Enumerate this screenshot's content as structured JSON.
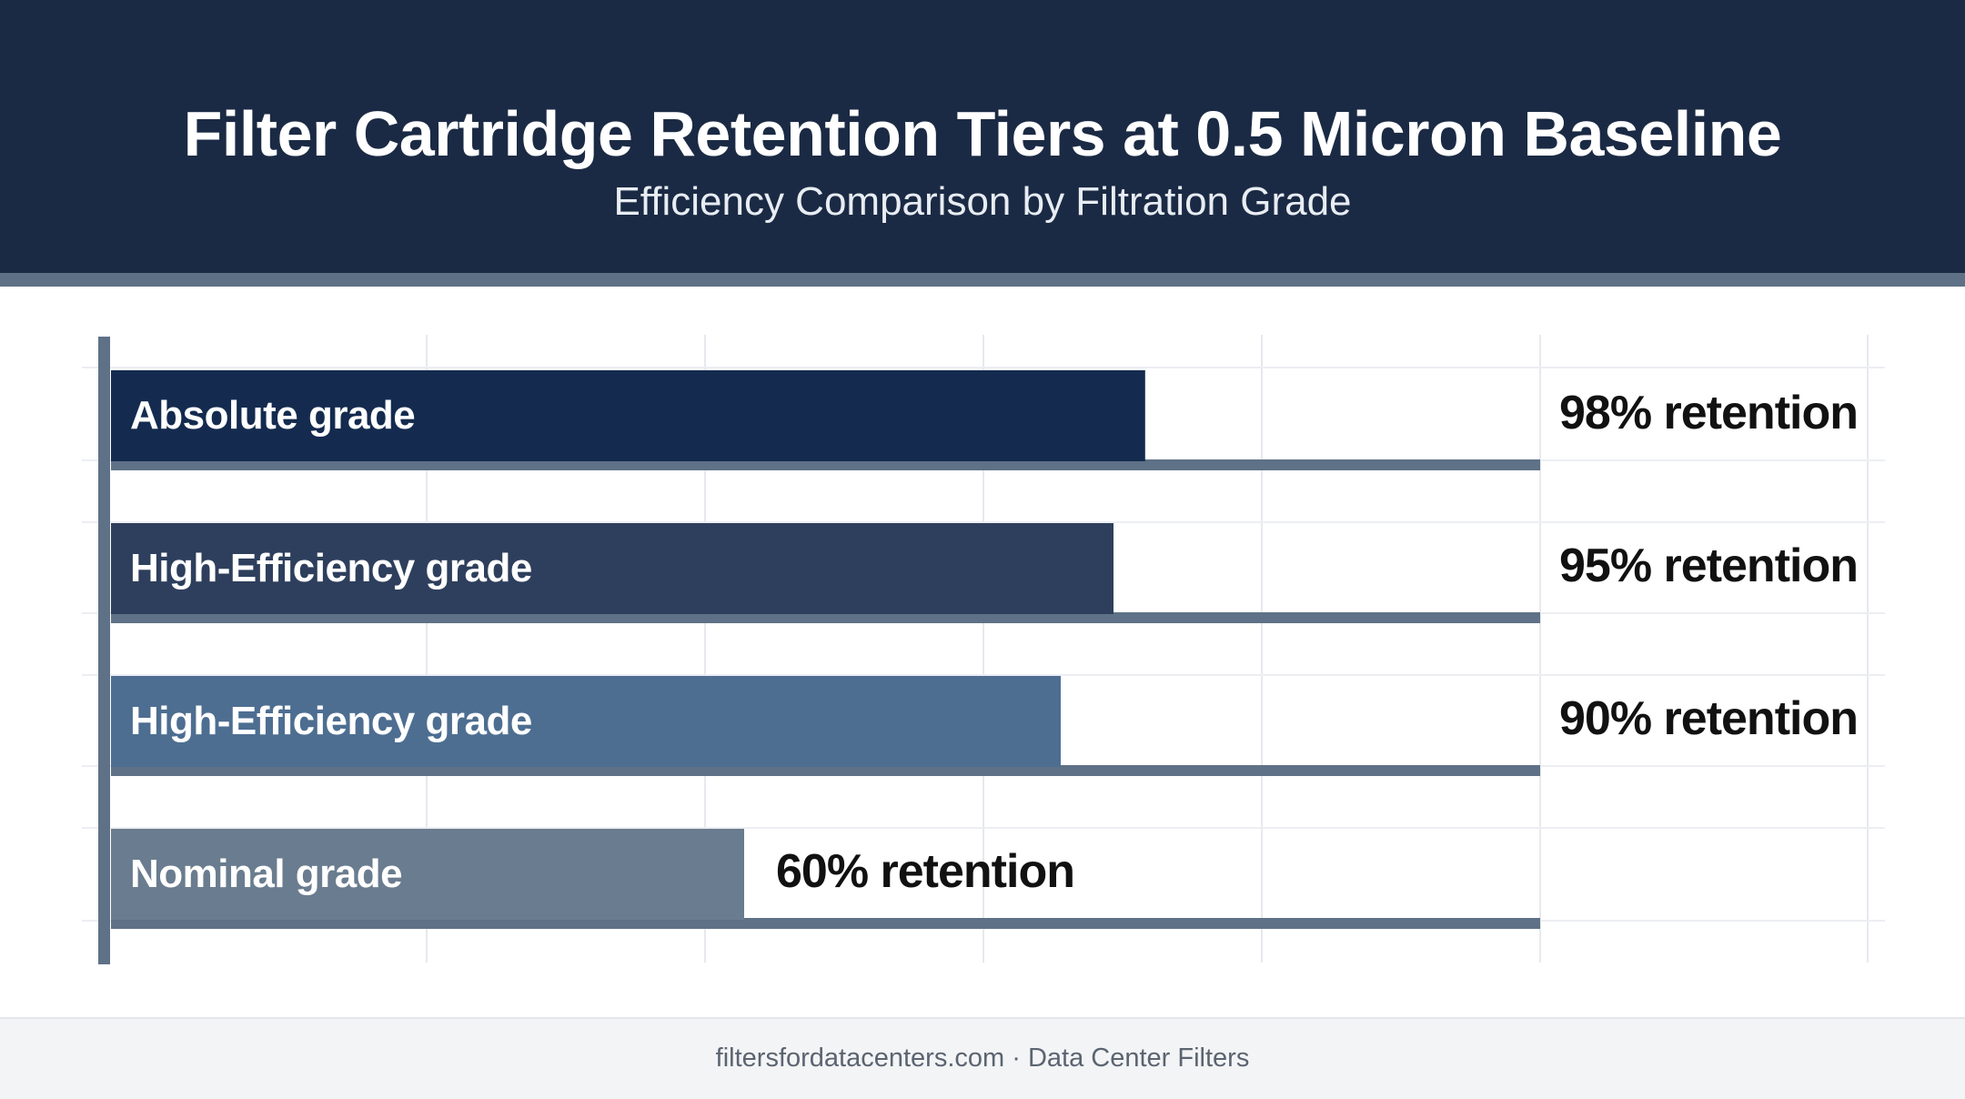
{
  "header": {
    "title": "Filter Cartridge Retention Tiers at 0.5 Micron Baseline",
    "subtitle": "Efficiency Comparison by Filtration Grade"
  },
  "footer": {
    "text": "filtersfordatacenters.com · Data Center Filters"
  },
  "chart_data": {
    "type": "bar",
    "orientation": "horizontal",
    "title": "Filter Cartridge Retention Tiers at 0.5 Micron Baseline",
    "subtitle": "Efficiency Comparison by Filtration Grade",
    "xlabel": "",
    "ylabel": "",
    "xlim": [
      0,
      100
    ],
    "grid": true,
    "legend": "none",
    "unit": "% retention",
    "categories": [
      "Absolute grade",
      "High-Efficiency grade",
      "High-Efficiency grade",
      "Nominal grade"
    ],
    "values": [
      98,
      95,
      90,
      60
    ],
    "data_labels": [
      "98% retention",
      "95% retention",
      "90% retention",
      "60% retention"
    ],
    "colors": [
      "#142b4f",
      "#2e3f5d",
      "#4d6e91",
      "#6a7c8f"
    ],
    "track_color": "#5f7186"
  }
}
